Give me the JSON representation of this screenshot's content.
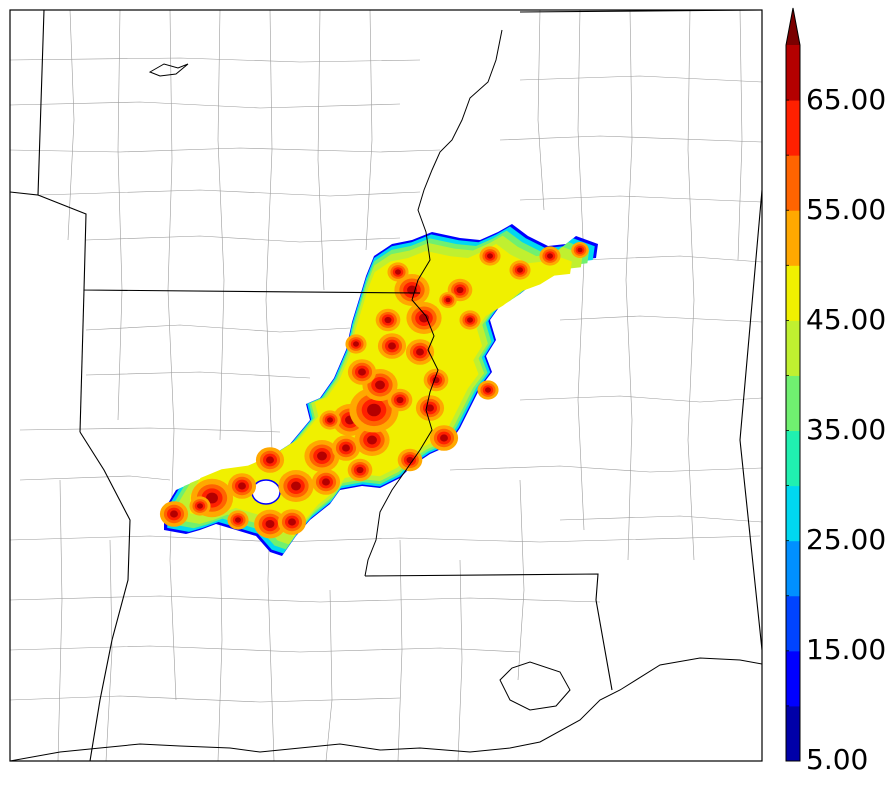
{
  "colorbar": {
    "labels": [
      "65.00",
      "55.00",
      "45.00",
      "35.00",
      "25.00",
      "15.00",
      "5.00"
    ],
    "bins": [
      {
        "min": 5,
        "max": 10,
        "color": "#0000a8"
      },
      {
        "min": 10,
        "max": 15,
        "color": "#0000ff"
      },
      {
        "min": 15,
        "max": 20,
        "color": "#0044ff"
      },
      {
        "min": 20,
        "max": 25,
        "color": "#0090ff"
      },
      {
        "min": 25,
        "max": 30,
        "color": "#00d8f0"
      },
      {
        "min": 30,
        "max": 35,
        "color": "#20f0b0"
      },
      {
        "min": 35,
        "max": 40,
        "color": "#70f070"
      },
      {
        "min": 40,
        "max": 45,
        "color": "#c0f030"
      },
      {
        "min": 45,
        "max": 50,
        "color": "#f0f000"
      },
      {
        "min": 50,
        "max": 55,
        "color": "#ffa800"
      },
      {
        "min": 55,
        "max": 60,
        "color": "#ff6400"
      },
      {
        "min": 60,
        "max": 65,
        "color": "#ff2000"
      },
      {
        "min": 65,
        "max": 70,
        "color": "#b40000"
      }
    ],
    "extend": "max",
    "extend_color": "#7a0000"
  },
  "map": {
    "features": [
      "state-borders",
      "county-borders",
      "coastline",
      "river"
    ],
    "field": "colored contour rain-rate swath across the mid-south"
  }
}
